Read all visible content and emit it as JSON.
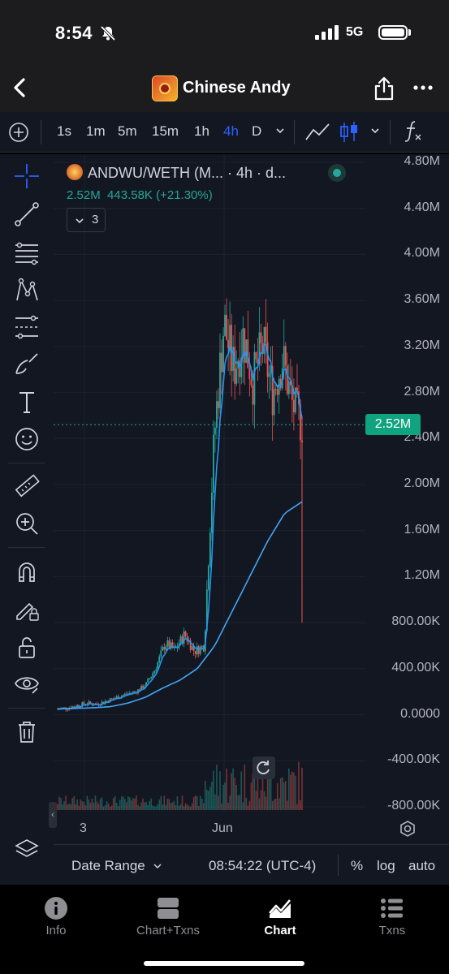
{
  "status": {
    "time": "8:54",
    "network": "5G"
  },
  "nav": {
    "title": "Chinese Andy"
  },
  "toolbar": {
    "timeframes": [
      "1s",
      "1m",
      "5m",
      "15m",
      "1h",
      "4h",
      "D"
    ],
    "active_timeframe": "4h"
  },
  "legend": {
    "symbol_line": "ANDWU/WETH (M... · 4h · d...",
    "price": "2.52M",
    "change": "443.58K (+21.30%)",
    "indicator_count": "3"
  },
  "price_axis": {
    "labels": [
      "4.80M",
      "4.40M",
      "4.00M",
      "3.60M",
      "3.20M",
      "2.80M",
      "2.40M",
      "2.00M",
      "1.60M",
      "1.20M",
      "800.00K",
      "400.00K",
      "0.0000",
      "-400.00K",
      "-800.00K"
    ],
    "current_price_tag": "2.52M"
  },
  "time_axis": {
    "labels": [
      "3",
      "Jun"
    ]
  },
  "bottom_bar": {
    "date_range": "Date Range",
    "clock": "08:54:22 (UTC-4)",
    "percent": "%",
    "log": "log",
    "auto": "auto"
  },
  "tabs": [
    {
      "label": "Info",
      "icon": "info-icon"
    },
    {
      "label": "Chart+Txns",
      "icon": "split-view-icon"
    },
    {
      "label": "Chart",
      "icon": "chart-icon",
      "active": true
    },
    {
      "label": "Txns",
      "icon": "list-icon"
    }
  ],
  "colors": {
    "up": "#26a69a",
    "down": "#ef5350",
    "accent": "#2962ff",
    "background": "#131722",
    "ma": "#2196f3",
    "price_tag": "#0fa37f"
  },
  "chart_data": {
    "type": "candlestick",
    "symbol": "ANDWU/WETH",
    "interval": "4h",
    "ylim": [
      -800000,
      4800000
    ],
    "current_price": 2520000,
    "x_tick_labels": [
      "3",
      "Jun"
    ],
    "series": [
      {
        "approx_closes": [
          50000,
          60000,
          80000,
          100000,
          90000,
          120000,
          150000,
          180000,
          200000,
          260000,
          400000,
          620000,
          560000,
          700000,
          550000,
          600000,
          2400000,
          3400000,
          3000000,
          3300000,
          2900000,
          3200000,
          2800000,
          3100000,
          2700000,
          2520000
        ]
      },
      {
        "approx_values": [
          50000,
          55000,
          60000,
          70000,
          100000,
          150000,
          230000,
          300000,
          400000,
          600000,
          900000,
          1200000,
          1500000,
          1750000,
          1850000
        ]
      }
    ]
  }
}
